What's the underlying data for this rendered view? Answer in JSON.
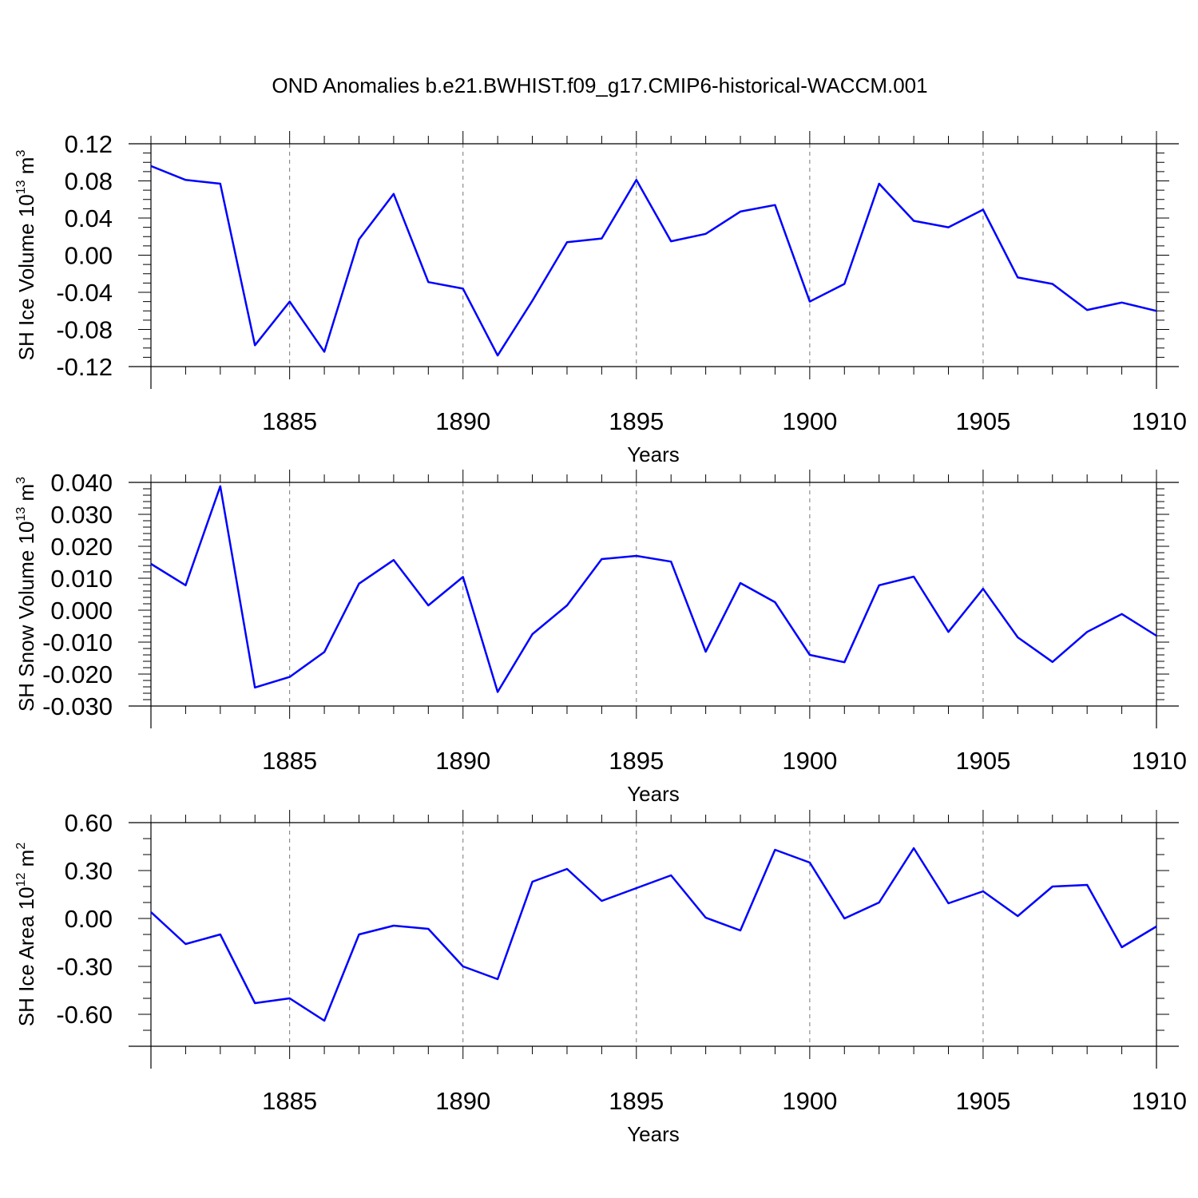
{
  "title": "OND Anomalies b.e21.BWHIST.f09_g17.CMIP6-historical-WACCM.001",
  "colors": {
    "series": "#0000ff",
    "axes": "#000000",
    "grid": "#777777"
  },
  "chart_data": [
    {
      "type": "line",
      "ylabel": "SH Ice Volume",
      "ylabel_unit_base": "10",
      "ylabel_unit_exp": "13",
      "ylabel_unit_suffix": "m",
      "ylabel_unit_suffix_exp": "3",
      "xlabel": "Years",
      "xlim": [
        1881,
        1910
      ],
      "ylim": [
        -0.12,
        0.12
      ],
      "yticks": [
        -0.12,
        -0.08,
        -0.04,
        0.0,
        0.04,
        0.08,
        0.12
      ],
      "ytick_labels": [
        "-0.12",
        "-0.08",
        "-0.04",
        "0.00",
        "0.04",
        "0.08",
        "0.12"
      ],
      "y_minor_step": 0.01,
      "xticks": [
        1885,
        1890,
        1895,
        1900,
        1905,
        1910
      ],
      "xtick_labels": [
        "1885",
        "1890",
        "1895",
        "1900",
        "1905",
        "1910"
      ],
      "vertical_grid": true,
      "x": [
        1881,
        1882,
        1883,
        1884,
        1885,
        1886,
        1887,
        1888,
        1889,
        1890,
        1891,
        1892,
        1893,
        1894,
        1895,
        1896,
        1897,
        1898,
        1899,
        1900,
        1901,
        1902,
        1903,
        1904,
        1905,
        1906,
        1907,
        1908,
        1909,
        1910
      ],
      "values": [
        0.096,
        0.081,
        0.077,
        -0.097,
        -0.05,
        -0.104,
        0.017,
        0.066,
        -0.029,
        -0.036,
        -0.108,
        -0.049,
        0.014,
        0.018,
        0.081,
        0.015,
        0.023,
        0.047,
        0.054,
        -0.05,
        -0.031,
        0.077,
        0.037,
        0.03,
        0.049,
        -0.024,
        -0.031,
        -0.059,
        -0.051,
        -0.06
      ]
    },
    {
      "type": "line",
      "ylabel": "SH Snow Volume",
      "ylabel_unit_base": "10",
      "ylabel_unit_exp": "13",
      "ylabel_unit_suffix": "m",
      "ylabel_unit_suffix_exp": "3",
      "xlabel": "Years",
      "xlim": [
        1881,
        1910
      ],
      "ylim": [
        -0.03,
        0.04
      ],
      "yticks": [
        -0.03,
        -0.02,
        -0.01,
        0.0,
        0.01,
        0.02,
        0.03,
        0.04
      ],
      "ytick_labels": [
        "-0.030",
        "-0.020",
        "-0.010",
        "0.000",
        "0.010",
        "0.020",
        "0.030",
        "0.040"
      ],
      "y_minor_step": 0.002,
      "xticks": [
        1885,
        1890,
        1895,
        1900,
        1905,
        1910
      ],
      "xtick_labels": [
        "1885",
        "1890",
        "1895",
        "1900",
        "1905",
        "1910"
      ],
      "vertical_grid": true,
      "x": [
        1881,
        1882,
        1883,
        1884,
        1885,
        1886,
        1887,
        1888,
        1889,
        1890,
        1891,
        1892,
        1893,
        1894,
        1895,
        1896,
        1897,
        1898,
        1899,
        1900,
        1901,
        1902,
        1903,
        1904,
        1905,
        1906,
        1907,
        1908,
        1909,
        1910
      ],
      "values": [
        0.0145,
        0.0078,
        0.0388,
        -0.0242,
        -0.0209,
        -0.0131,
        0.0083,
        0.0157,
        0.0015,
        0.0104,
        -0.0256,
        -0.0075,
        0.0015,
        0.016,
        0.017,
        0.0152,
        -0.013,
        0.0085,
        0.0025,
        -0.014,
        -0.0163,
        0.0078,
        0.0105,
        -0.0068,
        0.0067,
        -0.0085,
        -0.0162,
        -0.0068,
        -0.0012,
        -0.008
      ]
    },
    {
      "type": "line",
      "ylabel": "SH Ice Area",
      "ylabel_unit_base": "10",
      "ylabel_unit_exp": "12",
      "ylabel_unit_suffix": "m",
      "ylabel_unit_suffix_exp": "2",
      "xlabel": "Years",
      "xlim": [
        1881,
        1910
      ],
      "ylim": [
        -0.8,
        0.6
      ],
      "yticks": [
        -0.6,
        -0.3,
        0.0,
        0.3,
        0.6
      ],
      "ytick_labels": [
        "-0.60",
        "-0.30",
        "0.00",
        "0.30",
        "0.60"
      ],
      "y_minor_step": 0.1,
      "xticks": [
        1885,
        1890,
        1895,
        1900,
        1905,
        1910
      ],
      "xtick_labels": [
        "1885",
        "1890",
        "1895",
        "1900",
        "1905",
        "1910"
      ],
      "vertical_grid": true,
      "x": [
        1881,
        1882,
        1883,
        1884,
        1885,
        1886,
        1887,
        1888,
        1889,
        1890,
        1891,
        1892,
        1893,
        1894,
        1895,
        1896,
        1897,
        1898,
        1899,
        1900,
        1901,
        1902,
        1903,
        1904,
        1905,
        1906,
        1907,
        1908,
        1909,
        1910
      ],
      "values": [
        0.04,
        -0.16,
        -0.1,
        -0.53,
        -0.5,
        -0.64,
        -0.1,
        -0.045,
        -0.065,
        -0.3,
        -0.38,
        0.23,
        0.31,
        0.11,
        0.19,
        0.27,
        0.005,
        -0.075,
        0.43,
        0.35,
        0.0,
        0.1,
        0.44,
        0.095,
        0.17,
        0.015,
        0.2,
        0.21,
        -0.18,
        -0.05
      ]
    }
  ]
}
